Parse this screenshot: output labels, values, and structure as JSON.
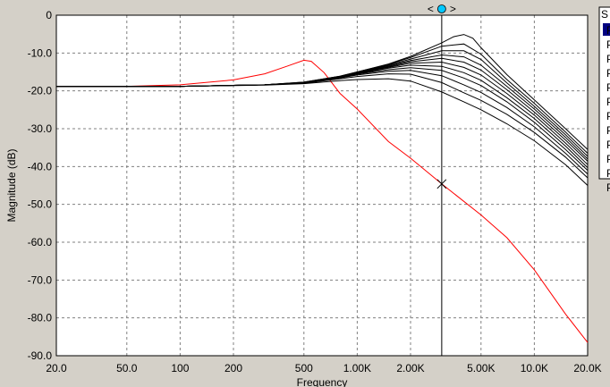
{
  "chart_data": {
    "type": "line",
    "title": "",
    "xlabel": "Frequency",
    "ylabel": "Magnitude  (dB)",
    "xscale": "log",
    "xlim": [
      20,
      20000
    ],
    "ylim": [
      -90,
      0
    ],
    "grid": true,
    "x_ticks": [
      20,
      50,
      100,
      200,
      500,
      1000,
      2000,
      5000,
      10000,
      20000
    ],
    "x_tick_labels": [
      "20.0",
      "50.0",
      "100",
      "200",
      "500",
      "1.00K",
      "2.00K",
      "5.00K",
      "10.0K",
      "20.0K"
    ],
    "y_ticks": [
      0,
      -10,
      -20,
      -30,
      -40,
      -50,
      -60,
      -70,
      -80,
      -90
    ],
    "y_tick_labels": [
      "0",
      "-10.0",
      "-20.0",
      "-30.0",
      "-40.0",
      "-50.0",
      "-60.0",
      "-70.0",
      "-80.0",
      "-90.0"
    ],
    "cursor": {
      "x": 3000,
      "marker_y": -44.6,
      "handle_label": "<>"
    },
    "legend": {
      "header": "S",
      "entries": [
        "P",
        "P",
        "P",
        "P",
        "P",
        "P",
        "P",
        "P",
        "P",
        "P",
        "P",
        "P"
      ],
      "selected_index": 0
    },
    "colors": {
      "plot_bg": "#ffffff",
      "panel_bg": "#d4d0c8",
      "grid": "#808080",
      "series_black": "#000000",
      "series_red": "#ff0000",
      "cursor_handle": "#00c8ff",
      "legend_selected": "#000080"
    },
    "series": [
      {
        "color": "#ff0000",
        "x": [
          20,
          50,
          100,
          200,
          300,
          400,
          500,
          550,
          650,
          800,
          1000,
          1500,
          2000,
          3000,
          5000,
          7000,
          10000,
          15000,
          20000
        ],
        "y": [
          -18.8,
          -18.8,
          -18.4,
          -17.1,
          -15.5,
          -13.5,
          -11.9,
          -12.2,
          -15.2,
          -20.7,
          -24.8,
          -33.4,
          -37.8,
          -44.6,
          -52.8,
          -58.8,
          -67.3,
          -79,
          -86.5
        ]
      },
      {
        "color": "#000000",
        "x": [
          20,
          100,
          300,
          500,
          800,
          1000,
          1500,
          2000,
          3000,
          4000,
          5000,
          7000,
          10000,
          15000,
          20000
        ],
        "y": [
          -18.8,
          -18.8,
          -18.5,
          -18.1,
          -17.3,
          -17,
          -16.8,
          -17.4,
          -20.3,
          -22.9,
          -25,
          -28.7,
          -33.2,
          -39.5,
          -45
        ]
      },
      {
        "color": "#000000",
        "x": [
          20,
          100,
          300,
          500,
          800,
          1000,
          1500,
          2000,
          3000,
          4000,
          5000,
          7000,
          10000,
          15000,
          20000
        ],
        "y": [
          -18.8,
          -18.8,
          -18.4,
          -18,
          -16.8,
          -16.2,
          -15.5,
          -15.6,
          -17.8,
          -20.5,
          -22.5,
          -26.2,
          -31,
          -37.5,
          -43
        ]
      },
      {
        "color": "#000000",
        "x": [
          20,
          100,
          300,
          500,
          800,
          1000,
          1500,
          2000,
          3000,
          4000,
          5000,
          7000,
          10000,
          15000,
          20000
        ],
        "y": [
          -18.8,
          -18.8,
          -18.4,
          -17.9,
          -16.6,
          -15.8,
          -14.8,
          -14.6,
          -16,
          -18.4,
          -20.4,
          -24.4,
          -29.5,
          -36.5,
          -42
        ]
      },
      {
        "color": "#000000",
        "x": [
          20,
          100,
          300,
          500,
          800,
          1000,
          1500,
          2000,
          3000,
          4000,
          5000,
          7000,
          10000,
          15000,
          20000
        ],
        "y": [
          -18.8,
          -18.8,
          -18.4,
          -17.9,
          -16.5,
          -15.6,
          -14.4,
          -13.9,
          -14.6,
          -16.6,
          -18.6,
          -22.9,
          -28.3,
          -35.5,
          -41
        ]
      },
      {
        "color": "#000000",
        "x": [
          20,
          100,
          300,
          500,
          800,
          1000,
          1500,
          2000,
          3000,
          4000,
          5000,
          7000,
          10000,
          15000,
          20000
        ],
        "y": [
          -18.8,
          -18.8,
          -18.4,
          -17.8,
          -16.4,
          -15.5,
          -14,
          -13.2,
          -13.5,
          -15.2,
          -17.2,
          -21.8,
          -27.3,
          -34.6,
          -40.3
        ]
      },
      {
        "color": "#000000",
        "x": [
          20,
          100,
          300,
          500,
          800,
          1000,
          1500,
          2000,
          3000,
          4000,
          5000,
          7000,
          10000,
          15000,
          20000
        ],
        "y": [
          -18.8,
          -18.8,
          -18.4,
          -17.8,
          -16.3,
          -15.4,
          -13.8,
          -12.7,
          -12.4,
          -13.8,
          -15.8,
          -20.7,
          -26.4,
          -33.8,
          -39.5
        ]
      },
      {
        "color": "#000000",
        "x": [
          20,
          100,
          300,
          500,
          800,
          1000,
          1500,
          2000,
          3000,
          4000,
          5000,
          7000,
          10000,
          15000,
          20000
        ],
        "y": [
          -18.8,
          -18.8,
          -18.4,
          -17.8,
          -16.2,
          -15.3,
          -13.6,
          -12.3,
          -11.4,
          -12.4,
          -14.5,
          -19.7,
          -25.6,
          -33,
          -38.6
        ]
      },
      {
        "color": "#000000",
        "x": [
          20,
          100,
          300,
          500,
          800,
          1000,
          1500,
          2000,
          3000,
          4000,
          5000,
          7000,
          10000,
          15000,
          20000
        ],
        "y": [
          -18.8,
          -18.8,
          -18.4,
          -17.8,
          -16.2,
          -15.2,
          -13.4,
          -12,
          -10.5,
          -11,
          -13.2,
          -18.8,
          -24.8,
          -32.3,
          -38
        ]
      },
      {
        "color": "#000000",
        "x": [
          20,
          100,
          300,
          500,
          800,
          1000,
          1500,
          2000,
          3000,
          4000,
          5000,
          7000,
          10000,
          15000,
          20000
        ],
        "y": [
          -18.8,
          -18.8,
          -18.4,
          -17.8,
          -16.2,
          -15.1,
          -13.2,
          -11.6,
          -9.4,
          -9.4,
          -11.7,
          -17.9,
          -24.1,
          -31.6,
          -37.3
        ]
      },
      {
        "color": "#000000",
        "x": [
          20,
          100,
          300,
          500,
          800,
          1000,
          1500,
          2000,
          3000,
          4000,
          5000,
          7000,
          10000,
          15000,
          20000
        ],
        "y": [
          -18.8,
          -18.8,
          -18.4,
          -17.7,
          -16.1,
          -15,
          -13,
          -11.2,
          -8.2,
          -7.6,
          -10.3,
          -17,
          -23.3,
          -30.9,
          -36.5
        ]
      },
      {
        "color": "#000000",
        "x": [
          20,
          100,
          300,
          500,
          800,
          1000,
          1500,
          2000,
          3000,
          3500,
          4000,
          4500,
          5000,
          7000,
          10000,
          15000,
          20000
        ],
        "y": [
          -18.8,
          -18.8,
          -18.4,
          -17.7,
          -16.1,
          -15,
          -12.9,
          -10.9,
          -7.3,
          -5.7,
          -5.1,
          -6.1,
          -8.6,
          -15.7,
          -22.4,
          -30,
          -35.5
        ]
      }
    ]
  }
}
